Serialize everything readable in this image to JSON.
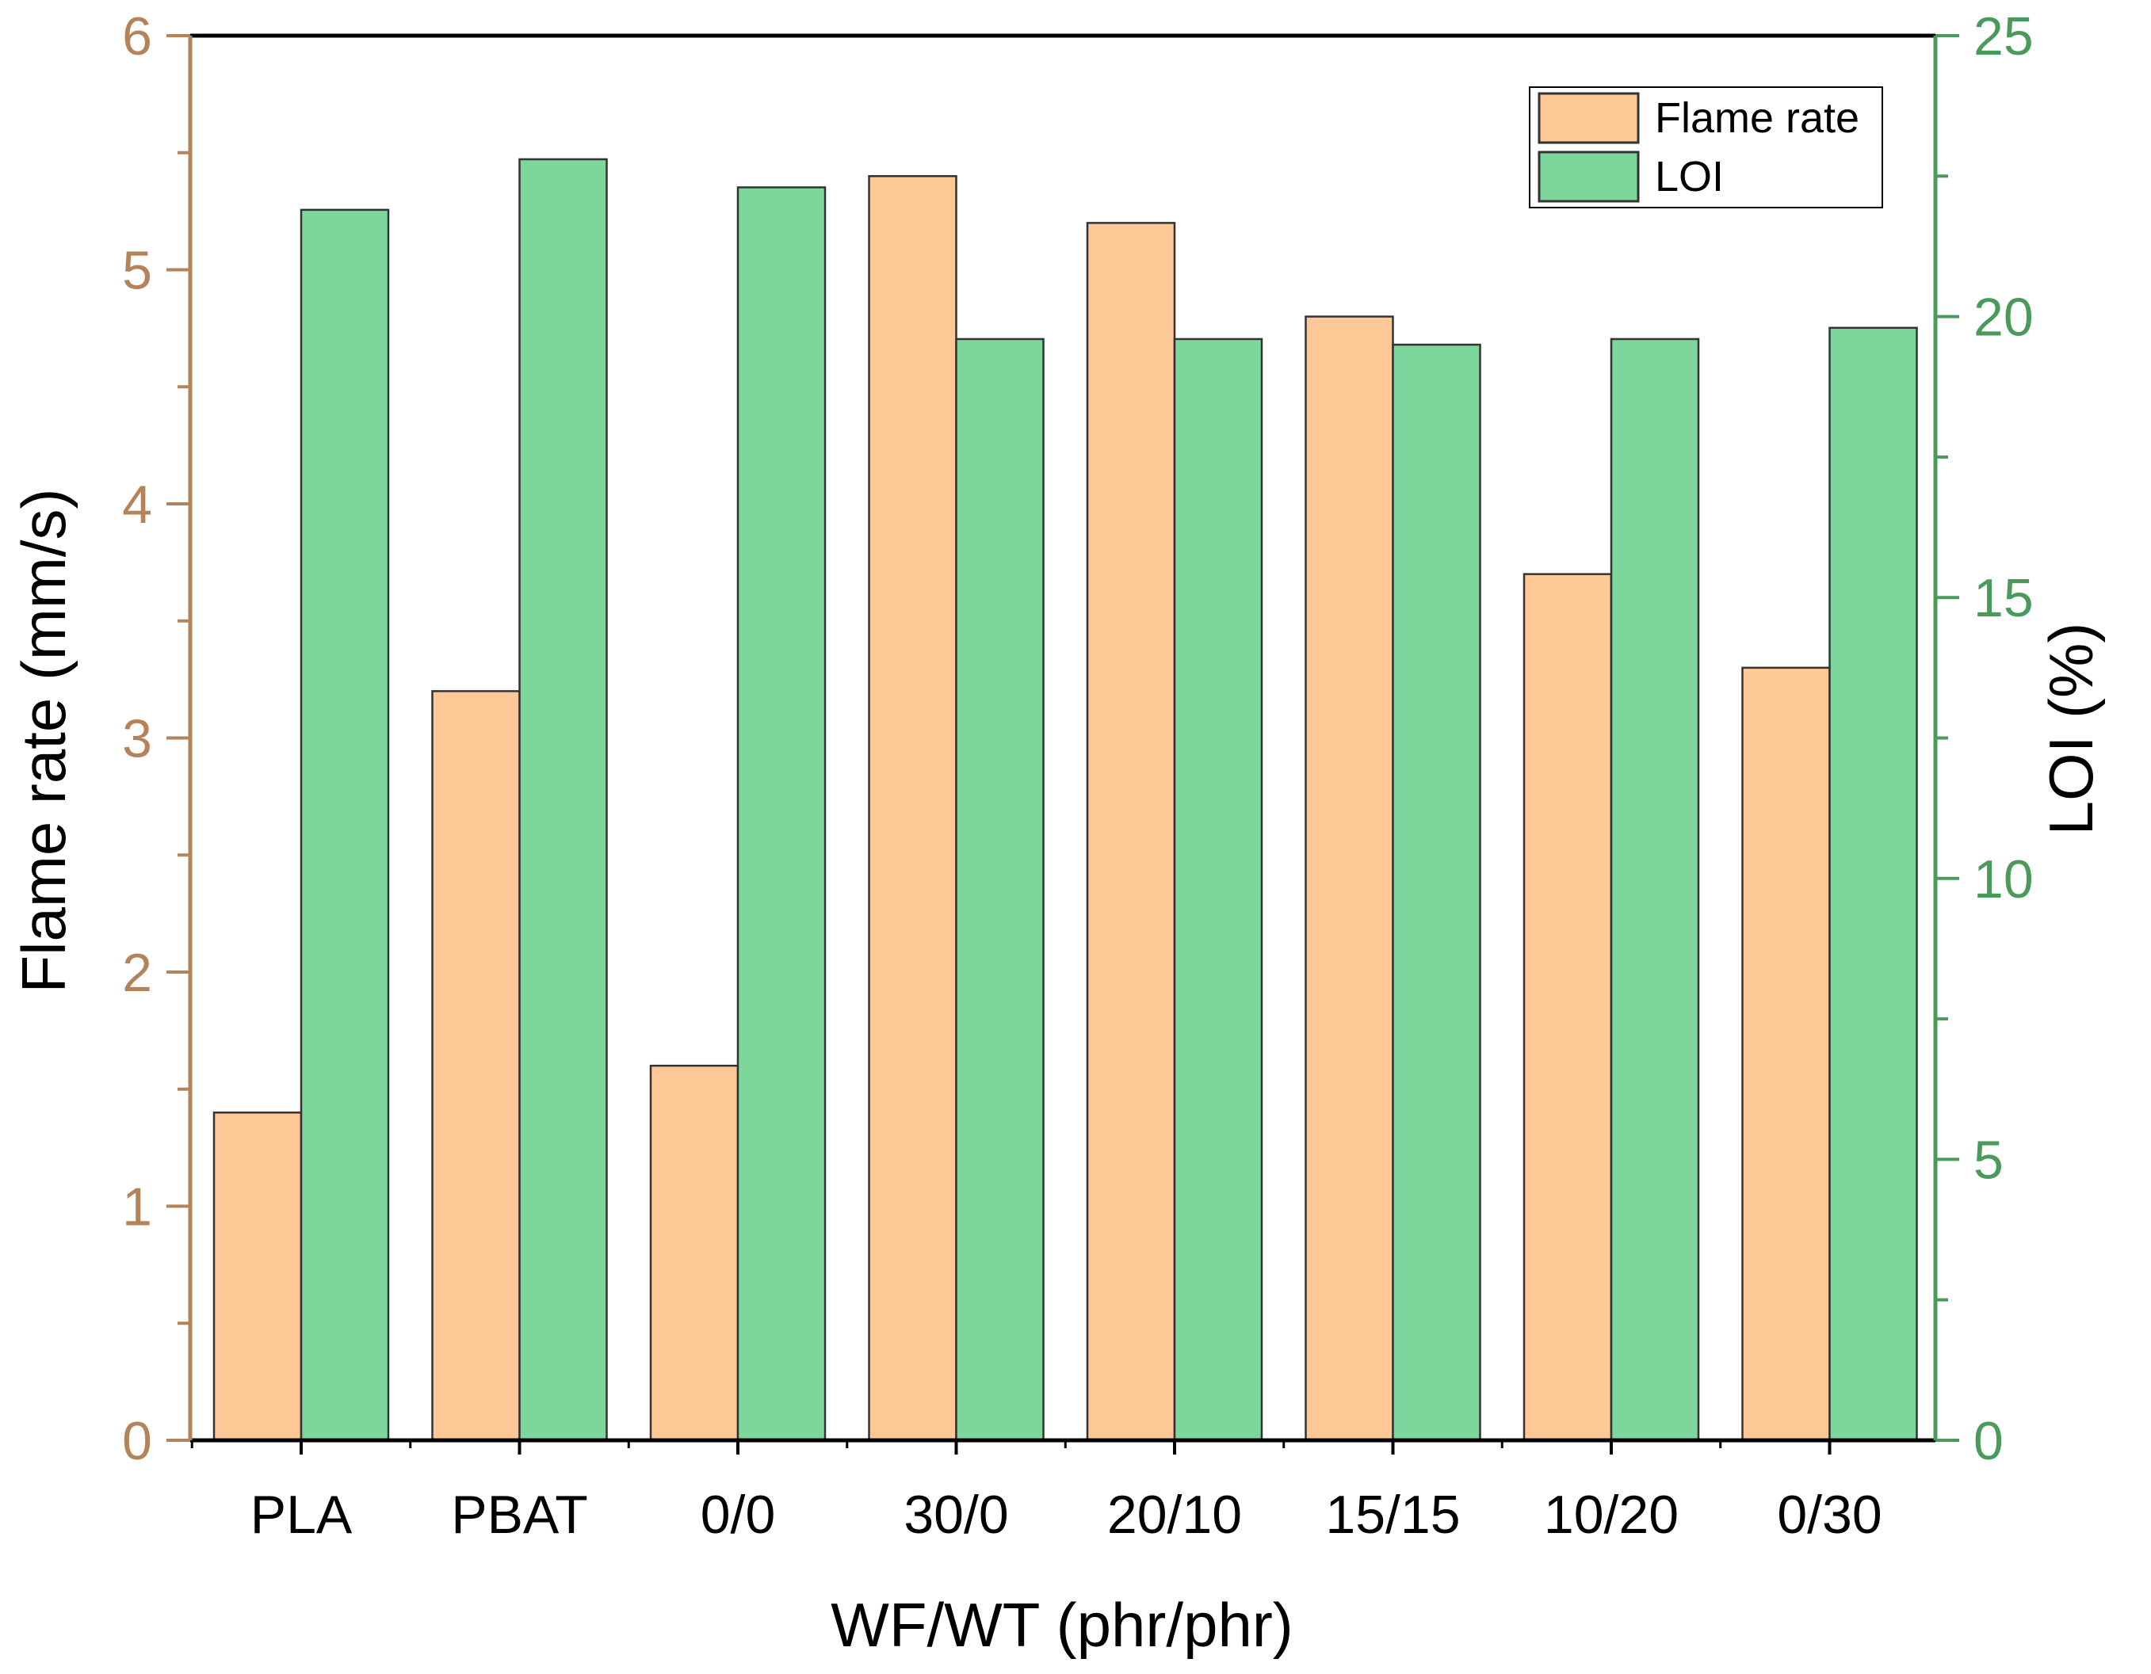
{
  "chart_data": {
    "type": "bar",
    "categories": [
      "PLA",
      "PBAT",
      "0/0",
      "30/0",
      "20/10",
      "15/15",
      "10/20",
      "0/30"
    ],
    "series": [
      {
        "name": "Flame rate",
        "axis": "left",
        "color": "#FFC896",
        "values": [
          1.4,
          3.2,
          1.6,
          5.4,
          5.2,
          4.8,
          3.7,
          3.3
        ]
      },
      {
        "name": "LOI",
        "axis": "right",
        "color": "#7DD69B",
        "values": [
          21.9,
          22.8,
          22.3,
          19.6,
          19.6,
          19.5,
          19.6,
          19.8
        ]
      }
    ],
    "xlabel": "WF/WT (phr/phr)",
    "ylabel_left": "Flame rate (mm/s)",
    "ylabel_right": "LOI (%)",
    "ylim_left": [
      0,
      6
    ],
    "ylim_right": [
      0,
      25
    ],
    "yticks_left": [
      "0",
      "1",
      "2",
      "3",
      "4",
      "5",
      "6"
    ],
    "yticks_right": [
      "0",
      "5",
      "10",
      "15",
      "20",
      "25"
    ],
    "left_axis_color": "#B5835A",
    "right_axis_color": "#4A9A5C",
    "legend": {
      "position": "top-right",
      "labels": [
        "Flame rate",
        "LOI"
      ]
    },
    "grid": false
  }
}
